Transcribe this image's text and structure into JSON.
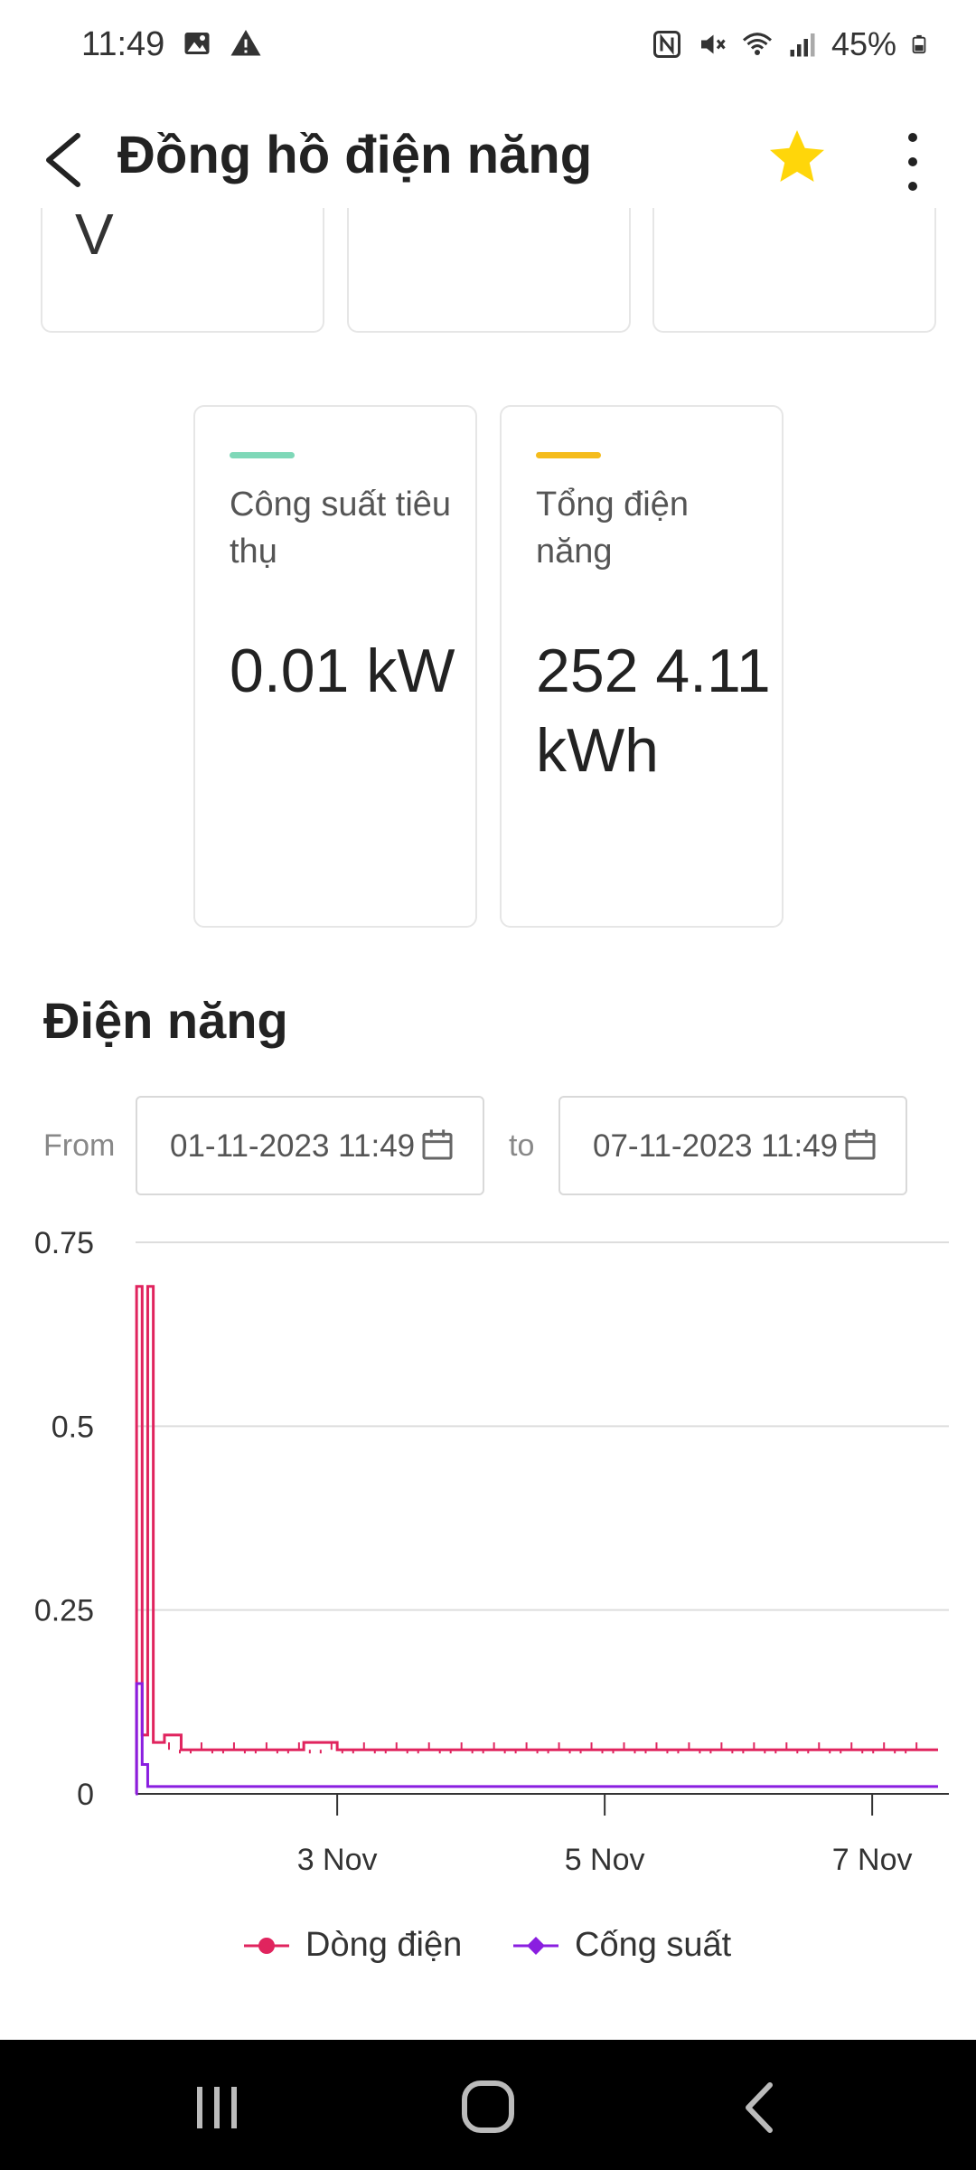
{
  "status_bar": {
    "time": "11:49",
    "battery": "45%",
    "icons": [
      "gallery-icon",
      "warning-icon",
      "nfc-icon",
      "mute-icon",
      "wifi-icon",
      "signal-icon",
      "battery-icon"
    ]
  },
  "header": {
    "title": "Đồng hồ điện năng",
    "star_color": "#FFD60A"
  },
  "partial_cards": [
    {
      "unit": "V"
    },
    {
      "unit": ""
    },
    {
      "unit": ""
    }
  ],
  "metrics": [
    {
      "label": "Công suất tiêu thụ",
      "value": "0.01 kW",
      "color": "#7FD8B8"
    },
    {
      "label": "Tổng điện năng",
      "value": "252 4.11 kWh",
      "color": "#F5BC1C"
    }
  ],
  "section": {
    "title": "Điện năng",
    "from_label": "From",
    "to_label": "to",
    "from_value": "01-11-2023 11:49",
    "to_value": "07-11-2023 11:49"
  },
  "chart_data": {
    "type": "line",
    "x_range": [
      "2023-11-01 11:49",
      "2023-11-07 11:49"
    ],
    "x_ticks": [
      "3 Nov",
      "5 Nov",
      "7 Nov"
    ],
    "y_ticks": [
      "0",
      "0.25",
      "0.5",
      "0.75"
    ],
    "ylim": [
      0,
      0.75
    ],
    "grid": true,
    "legend_position": "bottom",
    "series": [
      {
        "name": "Dòng điện",
        "color": "#E0245E",
        "marker": "circle",
        "points": [
          [
            "2023-11-01 11:49",
            0.0
          ],
          [
            "2023-11-01 12:00",
            0.69
          ],
          [
            "2023-11-01 13:00",
            0.08
          ],
          [
            "2023-11-01 14:00",
            0.69
          ],
          [
            "2023-11-01 15:00",
            0.07
          ],
          [
            "2023-11-01 17:00",
            0.08
          ],
          [
            "2023-11-01 20:00",
            0.06
          ],
          [
            "2023-11-02 12:00",
            0.06
          ],
          [
            "2023-11-02 18:00",
            0.07
          ],
          [
            "2023-11-03 00:00",
            0.06
          ],
          [
            "2023-11-03 12:00",
            0.06
          ],
          [
            "2023-11-04 00:00",
            0.06
          ],
          [
            "2023-11-04 12:00",
            0.06
          ],
          [
            "2023-11-05 00:00",
            0.06
          ],
          [
            "2023-11-05 12:00",
            0.06
          ],
          [
            "2023-11-06 00:00",
            0.06
          ],
          [
            "2023-11-06 12:00",
            0.06
          ],
          [
            "2023-11-07 00:00",
            0.06
          ],
          [
            "2023-11-07 11:49",
            0.06
          ]
        ]
      },
      {
        "name": "Cống suất",
        "color": "#8A1EE0",
        "marker": "diamond",
        "points": [
          [
            "2023-11-01 11:49",
            0.0
          ],
          [
            "2023-11-01 12:00",
            0.15
          ],
          [
            "2023-11-01 13:00",
            0.04
          ],
          [
            "2023-11-01 14:00",
            0.01
          ],
          [
            "2023-11-02 12:00",
            0.01
          ],
          [
            "2023-11-03 12:00",
            0.01
          ],
          [
            "2023-11-04 12:00",
            0.01
          ],
          [
            "2023-11-05 12:00",
            0.01
          ],
          [
            "2023-11-06 12:00",
            0.01
          ],
          [
            "2023-11-07 11:49",
            0.01
          ]
        ]
      }
    ]
  }
}
